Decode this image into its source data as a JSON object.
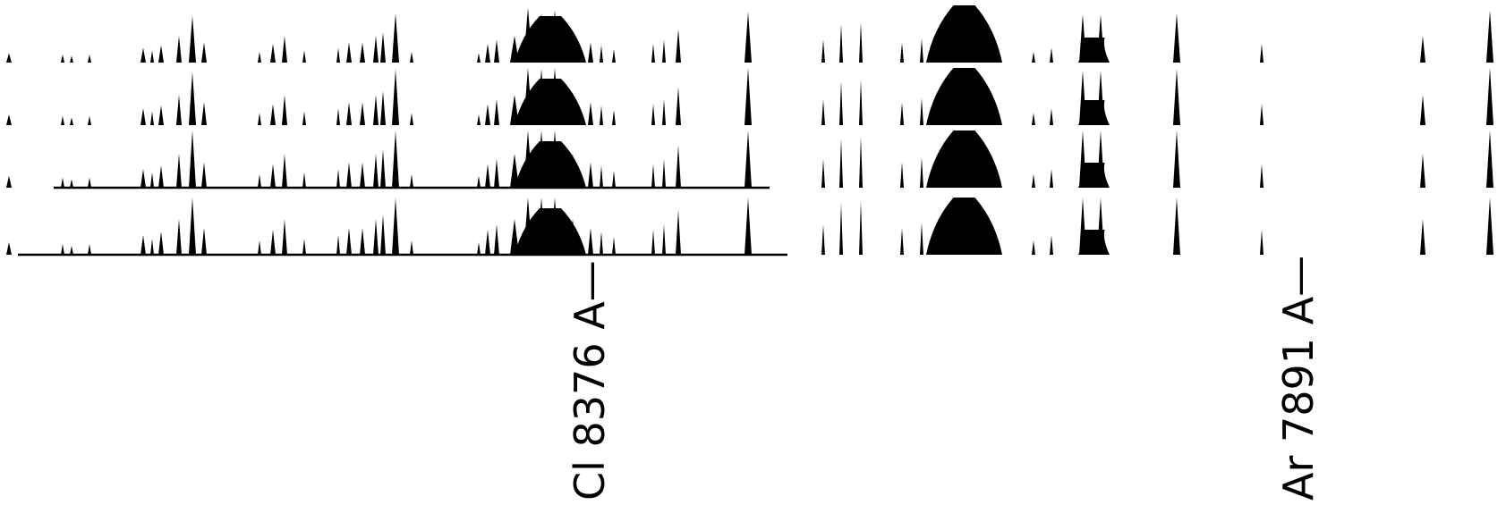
{
  "annotations": {
    "cl_label": "Cl 8376 A",
    "ar_label": "Ar 7891 A"
  },
  "colors": {
    "ink": "#000000",
    "background": "#ffffff"
  }
}
